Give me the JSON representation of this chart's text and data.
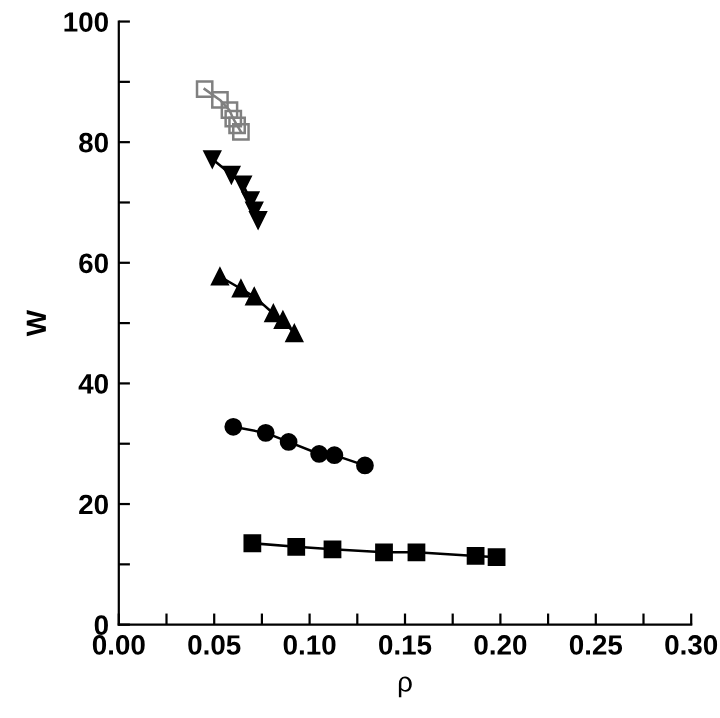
{
  "chart_data": {
    "type": "line",
    "xlabel": "ρ",
    "ylabel": "W",
    "xlim": [
      0,
      0.3
    ],
    "ylim": [
      0,
      100
    ],
    "xticks": [
      {
        "value": 0,
        "label": "0.00"
      },
      {
        "value": 0.025,
        "label": null
      },
      {
        "value": 0.05,
        "label": "0.05"
      },
      {
        "value": 0.075,
        "label": null
      },
      {
        "value": 0.1,
        "label": "0.10"
      },
      {
        "value": 0.125,
        "label": null
      },
      {
        "value": 0.15,
        "label": "0.15"
      },
      {
        "value": 0.175,
        "label": null
      },
      {
        "value": 0.2,
        "label": "0.20"
      },
      {
        "value": 0.225,
        "label": null
      },
      {
        "value": 0.25,
        "label": "0.25"
      },
      {
        "value": 0.275,
        "label": null
      },
      {
        "value": 0.3,
        "label": "0.30"
      }
    ],
    "yticks": [
      0,
      {
        "value": 10,
        "label": null
      },
      20,
      {
        "value": 30,
        "label": null
      },
      40,
      {
        "value": 50,
        "label": null
      },
      60,
      {
        "value": 70,
        "label": null
      },
      80,
      {
        "value": 90,
        "label": null
      },
      100
    ],
    "grid": false,
    "legend": false,
    "line_style": "solid",
    "series": [
      {
        "marker": "square",
        "color": "#000000",
        "x": [
          0.07,
          0.093,
          0.112,
          0.139,
          0.156,
          0.187,
          0.198
        ],
        "values": [
          13.5,
          12.9,
          12.5,
          12.0,
          12.0,
          11.4,
          11.2
        ]
      },
      {
        "marker": "circle",
        "color": "#000000",
        "x": [
          0.06,
          0.077,
          0.089,
          0.105,
          0.113,
          0.129
        ],
        "values": [
          32.8,
          31.8,
          30.3,
          28.3,
          28.1,
          26.4
        ]
      },
      {
        "marker": "triangle",
        "color": "#000000",
        "x": [
          0.053,
          0.064,
          0.071,
          0.081,
          0.086,
          0.092
        ],
        "values": [
          57.7,
          55.7,
          54.4,
          51.6,
          50.5,
          48.3
        ]
      },
      {
        "marker": "triangle_down",
        "color": "#000000",
        "x": [
          0.049,
          0.059,
          0.065,
          0.069,
          0.071,
          0.073
        ],
        "values": [
          77.2,
          74.6,
          73.0,
          70.4,
          68.7,
          67.1
        ]
      },
      {
        "marker": "square_open",
        "color": "#808080",
        "x": [
          0.045,
          0.053,
          0.058,
          0.06,
          0.062,
          0.064
        ],
        "values": [
          88.8,
          87.0,
          85.3,
          83.9,
          82.8,
          81.7
        ]
      }
    ]
  }
}
